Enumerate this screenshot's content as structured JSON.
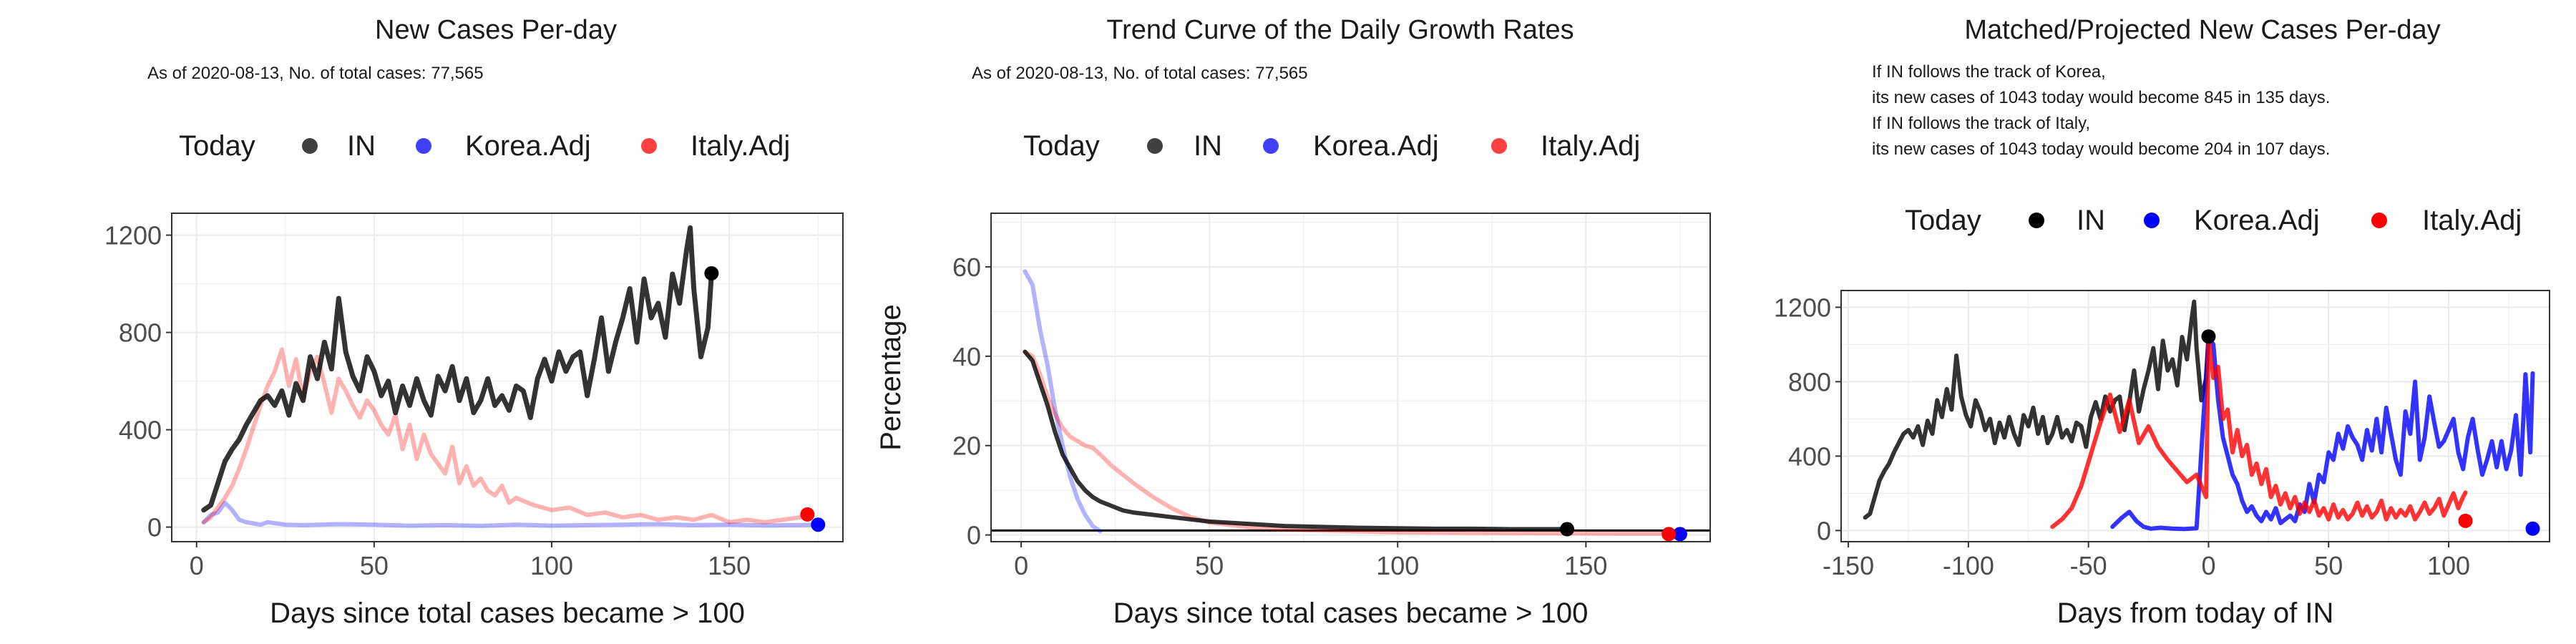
{
  "colors": {
    "in": "#000000",
    "korea": "#0000ff",
    "italy": "#ff0000",
    "grid": "#ebebeb",
    "panel_border": "#333333"
  },
  "legend": {
    "title": "Today",
    "items": [
      "IN",
      "Korea.Adj",
      "Italy.Adj"
    ]
  },
  "panels": [
    {
      "title": "New Cases Per-day",
      "notes": [
        "As of 2020-08-13, No. of total cases: 77,565"
      ]
    },
    {
      "title": "Trend Curve of the Daily Growth Rates",
      "notes": [
        "As of 2020-08-13, No. of total cases: 77,565"
      ]
    },
    {
      "title": "Matched/Projected New Cases Per-day",
      "notes": [
        "If IN follows the track of Korea,",
        "its new cases of 1043 today would become 845 in 135 days.",
        "If IN follows the track of Italy,",
        "its new cases of 1043 today would become 204 in 107 days."
      ]
    }
  ],
  "chart_data": [
    {
      "type": "line",
      "title": "New Cases Per-day",
      "subtitle": "As of 2020-08-13, No. of total cases: 77,565",
      "xlabel": "Days since total cases became > 100",
      "ylabel": "",
      "xlim": [
        -7,
        182
      ],
      "ylim": [
        -60,
        1290
      ],
      "xticks": [
        0,
        50,
        100,
        150
      ],
      "yticks": [
        0,
        400,
        800,
        1200
      ],
      "grid": true,
      "legend_position": "top",
      "series": [
        {
          "name": "IN",
          "color": "#000000",
          "x": [
            2,
            4,
            6,
            8,
            10,
            12,
            14,
            16,
            18,
            20,
            22,
            24,
            26,
            28,
            30,
            32,
            34,
            36,
            38,
            40,
            42,
            44,
            46,
            48,
            50,
            52,
            54,
            56,
            58,
            60,
            62,
            64,
            66,
            68,
            70,
            72,
            74,
            76,
            78,
            80,
            82,
            84,
            86,
            88,
            90,
            92,
            94,
            96,
            98,
            100,
            102,
            104,
            106,
            108,
            110,
            112,
            114,
            116,
            118,
            120,
            122,
            124,
            126,
            128,
            130,
            132,
            134,
            136,
            138,
            139,
            140,
            142,
            144,
            145
          ],
          "values": [
            70,
            90,
            180,
            270,
            320,
            360,
            420,
            470,
            520,
            540,
            500,
            560,
            460,
            590,
            520,
            700,
            610,
            760,
            650,
            940,
            720,
            620,
            560,
            700,
            640,
            540,
            600,
            470,
            580,
            500,
            610,
            520,
            460,
            620,
            560,
            660,
            520,
            610,
            470,
            520,
            610,
            500,
            540,
            480,
            580,
            560,
            450,
            610,
            690,
            600,
            720,
            640,
            700,
            720,
            540,
            690,
            860,
            640,
            760,
            860,
            980,
            760,
            1020,
            860,
            920,
            780,
            1040,
            920,
            1140,
            1230,
            980,
            700,
            820,
            1043
          ]
        },
        {
          "name": "Korea.Adj",
          "color": "#0000ff",
          "x": [
            2,
            4,
            6,
            8,
            10,
            12,
            14,
            16,
            18,
            20,
            25,
            30,
            40,
            50,
            60,
            70,
            80,
            90,
            100,
            110,
            120,
            130,
            140,
            150,
            160,
            170,
            175
          ],
          "values": [
            20,
            50,
            60,
            100,
            70,
            30,
            20,
            15,
            10,
            20,
            10,
            8,
            12,
            10,
            6,
            8,
            5,
            10,
            6,
            8,
            10,
            12,
            8,
            10,
            7,
            8,
            10
          ]
        },
        {
          "name": "Italy.Adj",
          "color": "#ff0000",
          "x": [
            2,
            4,
            6,
            8,
            10,
            12,
            14,
            16,
            18,
            20,
            22,
            24,
            26,
            28,
            30,
            32,
            34,
            36,
            38,
            40,
            42,
            44,
            46,
            48,
            50,
            52,
            54,
            56,
            58,
            60,
            62,
            64,
            66,
            68,
            70,
            72,
            74,
            76,
            78,
            80,
            82,
            84,
            86,
            88,
            90,
            95,
            100,
            105,
            110,
            115,
            120,
            125,
            130,
            135,
            140,
            145,
            150,
            155,
            160,
            165,
            170,
            172
          ],
          "values": [
            20,
            40,
            80,
            120,
            170,
            240,
            320,
            410,
            500,
            580,
            640,
            730,
            580,
            690,
            530,
            640,
            700,
            590,
            470,
            610,
            560,
            500,
            450,
            520,
            480,
            420,
            380,
            460,
            320,
            420,
            280,
            380,
            300,
            260,
            220,
            330,
            180,
            250,
            170,
            200,
            150,
            130,
            170,
            100,
            120,
            90,
            70,
            80,
            50,
            60,
            40,
            50,
            30,
            40,
            30,
            50,
            20,
            30,
            20,
            30,
            40,
            52
          ]
        }
      ],
      "today_points": [
        {
          "name": "IN",
          "x": 145,
          "y": 1043
        },
        {
          "name": "Korea.Adj",
          "x": 175,
          "y": 10
        },
        {
          "name": "Italy.Adj",
          "x": 172,
          "y": 52
        }
      ]
    },
    {
      "type": "line",
      "title": "Trend Curve of the Daily Growth Rates",
      "subtitle": "As of 2020-08-13, No. of total cases: 77,565",
      "xlabel": "Days since total cases became > 100",
      "ylabel": "Percentage",
      "xlim": [
        -8,
        183
      ],
      "ylim": [
        -1.5,
        72
      ],
      "xticks": [
        0,
        50,
        100,
        150
      ],
      "yticks": [
        0,
        20,
        40,
        60
      ],
      "grid": true,
      "legend_position": "top",
      "reference_line_y": 1,
      "series": [
        {
          "name": "IN",
          "color": "#000000",
          "x": [
            1,
            3,
            5,
            7,
            9,
            11,
            13,
            15,
            17,
            19,
            21,
            24,
            27,
            30,
            35,
            40,
            45,
            50,
            60,
            70,
            80,
            90,
            100,
            110,
            120,
            130,
            140,
            145
          ],
          "values": [
            41,
            39,
            34,
            29,
            23,
            18,
            15,
            12,
            10,
            8.5,
            7.5,
            6.5,
            5.5,
            5,
            4.5,
            4,
            3.5,
            3,
            2.5,
            2,
            1.8,
            1.6,
            1.5,
            1.4,
            1.4,
            1.3,
            1.3,
            1.3
          ]
        },
        {
          "name": "Korea.Adj",
          "color": "#0000ff",
          "x": [
            1,
            3,
            5,
            7,
            9,
            11,
            13,
            15,
            17,
            19,
            21
          ],
          "values": [
            59,
            56,
            46,
            38,
            28,
            20,
            13,
            8,
            4.5,
            2,
            0.8
          ]
        },
        {
          "name": "Italy.Adj",
          "color": "#ff0000",
          "x": [
            1,
            3,
            5,
            7,
            9,
            11,
            13,
            15,
            17,
            19,
            21,
            24,
            27,
            30,
            35,
            40,
            45,
            50,
            60,
            70,
            80,
            90,
            100,
            120,
            140,
            160,
            172
          ],
          "values": [
            41,
            40,
            36,
            31,
            27,
            24,
            22,
            21,
            20,
            19.5,
            18,
            15.5,
            13.5,
            11.5,
            8.5,
            6,
            4,
            2.8,
            1.8,
            1.2,
            1,
            0.8,
            0.6,
            0.5,
            0.4,
            0.3,
            0.3
          ]
        }
      ],
      "today_points": [
        {
          "name": "IN",
          "x": 145,
          "y": 1.3
        },
        {
          "name": "Korea.Adj",
          "x": 175,
          "y": 0.2
        },
        {
          "name": "Italy.Adj",
          "x": 172,
          "y": 0.2
        }
      ]
    },
    {
      "type": "line",
      "title": "Matched/Projected New Cases Per-day",
      "subtitle": "If IN follows the track of Korea, its new cases of 1043 today would become 845 in 135 days. If IN follows the track of Italy, its new cases of 1043 today would become 204 in 107 days.",
      "xlabel": "Days from today of IN",
      "ylabel": "",
      "xlim": [
        -153,
        142
      ],
      "ylim": [
        -60,
        1290
      ],
      "xticks": [
        -150,
        -100,
        -50,
        0,
        50,
        100
      ],
      "yticks": [
        0,
        400,
        800,
        1200
      ],
      "grid": true,
      "legend_position": "top",
      "series": [
        {
          "name": "IN",
          "color": "#000000",
          "x": [
            -143,
            -141,
            -139,
            -137,
            -135,
            -133,
            -131,
            -129,
            -127,
            -125,
            -123,
            -121,
            -119,
            -117,
            -115,
            -113,
            -111,
            -109,
            -107,
            -105,
            -103,
            -101,
            -99,
            -97,
            -95,
            -93,
            -91,
            -89,
            -87,
            -85,
            -83,
            -81,
            -79,
            -77,
            -75,
            -73,
            -71,
            -69,
            -67,
            -65,
            -63,
            -61,
            -59,
            -57,
            -55,
            -53,
            -51,
            -49,
            -47,
            -45,
            -43,
            -41,
            -39,
            -37,
            -35,
            -33,
            -31,
            -29,
            -27,
            -25,
            -23,
            -21,
            -19,
            -17,
            -15,
            -13,
            -11,
            -9,
            -7,
            -6,
            -5,
            -3,
            -1,
            0
          ],
          "values": [
            70,
            90,
            180,
            270,
            320,
            360,
            420,
            470,
            520,
            540,
            500,
            560,
            460,
            590,
            520,
            700,
            610,
            760,
            650,
            940,
            720,
            620,
            560,
            700,
            640,
            540,
            600,
            470,
            580,
            500,
            610,
            520,
            460,
            620,
            560,
            660,
            520,
            610,
            470,
            520,
            610,
            500,
            540,
            480,
            580,
            560,
            450,
            610,
            690,
            600,
            720,
            640,
            700,
            720,
            540,
            690,
            860,
            640,
            760,
            860,
            980,
            760,
            1020,
            860,
            920,
            780,
            1040,
            920,
            1140,
            1230,
            980,
            700,
            820,
            1043
          ]
        },
        {
          "name": "Korea.Adj",
          "color": "#0000ff",
          "x": [
            -40,
            -36,
            -33,
            -30,
            -27,
            -24,
            -20,
            -15,
            -10,
            -5,
            0,
            2,
            4,
            6,
            8,
            10,
            12,
            14,
            16,
            18,
            20,
            22,
            24,
            26,
            28,
            30,
            32,
            34,
            36,
            38,
            40,
            42,
            44,
            46,
            48,
            50,
            52,
            54,
            56,
            58,
            60,
            62,
            64,
            66,
            68,
            70,
            72,
            74,
            76,
            78,
            80,
            82,
            84,
            86,
            88,
            90,
            92,
            94,
            96,
            98,
            100,
            102,
            104,
            106,
            108,
            110,
            112,
            114,
            116,
            118,
            120,
            122,
            124,
            126,
            128,
            130,
            132,
            134,
            135
          ],
          "values": [
            20,
            70,
            100,
            50,
            20,
            10,
            15,
            10,
            8,
            12,
            1043,
            1000,
            700,
            500,
            400,
            300,
            250,
            160,
            100,
            130,
            80,
            50,
            100,
            60,
            120,
            40,
            60,
            80,
            50,
            140,
            100,
            250,
            150,
            300,
            260,
            420,
            380,
            520,
            440,
            560,
            500,
            460,
            380,
            540,
            430,
            600,
            420,
            660,
            520,
            380,
            300,
            640,
            520,
            800,
            380,
            500,
            720,
            580,
            450,
            480,
            540,
            600,
            420,
            330,
            500,
            600,
            440,
            300,
            380,
            480,
            340,
            480,
            330,
            430,
            620,
            300,
            840,
            420,
            845
          ]
        },
        {
          "name": "Italy.Adj",
          "color": "#ff0000",
          "x": [
            -65,
            -61,
            -57,
            -53,
            -49,
            -45,
            -41,
            -37,
            -33,
            -29,
            -25,
            -21,
            -17,
            -13,
            -9,
            -5,
            -3,
            -1,
            0,
            2,
            4,
            6,
            8,
            10,
            12,
            14,
            16,
            18,
            20,
            22,
            24,
            26,
            28,
            30,
            32,
            34,
            36,
            38,
            40,
            42,
            44,
            46,
            48,
            50,
            52,
            54,
            56,
            58,
            60,
            62,
            64,
            66,
            68,
            70,
            72,
            74,
            76,
            78,
            80,
            82,
            84,
            86,
            88,
            90,
            92,
            94,
            96,
            98,
            100,
            102,
            104,
            106,
            107
          ],
          "values": [
            20,
            60,
            120,
            240,
            410,
            580,
            730,
            530,
            700,
            470,
            560,
            450,
            380,
            320,
            260,
            300,
            240,
            180,
            1043,
            820,
            880,
            600,
            650,
            420,
            540,
            400,
            460,
            300,
            360,
            250,
            330,
            180,
            240,
            140,
            200,
            120,
            180,
            90,
            150,
            100,
            160,
            80,
            120,
            60,
            140,
            70,
            110,
            60,
            90,
            150,
            80,
            130,
            70,
            100,
            160,
            60,
            120,
            70,
            110,
            80,
            130,
            60,
            100,
            150,
            90,
            120,
            170,
            80,
            140,
            200,
            120,
            180,
            204
          ]
        }
      ],
      "today_points": [
        {
          "name": "IN",
          "x": 0,
          "y": 1043
        },
        {
          "name": "Korea.Adj",
          "x": 135,
          "y": 10
        },
        {
          "name": "Italy.Adj",
          "x": 107,
          "y": 52
        }
      ]
    }
  ]
}
